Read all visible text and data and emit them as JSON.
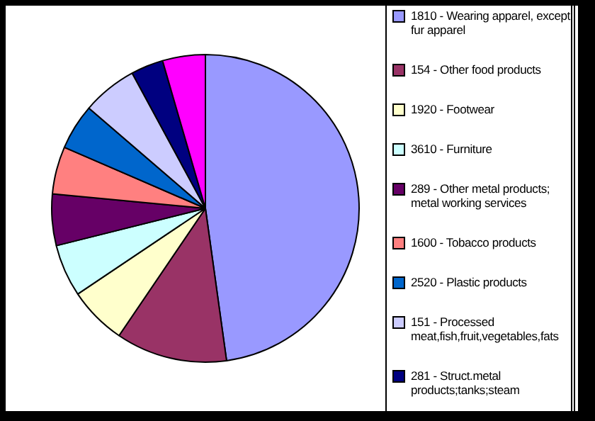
{
  "chart_data": {
    "type": "pie",
    "categories": [
      "1810 - Wearing apparel, except fur apparel",
      "154 - Other food products",
      "1920 - Footwear",
      "3610 - Furniture",
      "289 - Other metal products; metal working services",
      "1600 - Tobacco products",
      "2520 - Plastic products",
      "151 - Processed meat,fish,fruit,vegetables,fats",
      "281 - Struct.metal products;tanks;steam",
      null
    ],
    "values": [
      47.8,
      11.7,
      6.1,
      5.5,
      5.4,
      5.0,
      4.8,
      5.8,
      3.4,
      4.5
    ],
    "colors": [
      "#9999ff",
      "#993366",
      "#ffffcc",
      "#ccffff",
      "#660066",
      "#ff8080",
      "#0066cc",
      "#ccccff",
      "#000080",
      "#ff00ff"
    ],
    "legend": "right"
  }
}
